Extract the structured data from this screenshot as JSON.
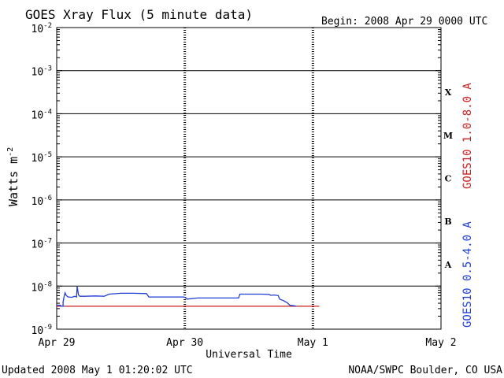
{
  "chart_data": {
    "type": "line",
    "title": "GOES Xray Flux (5 minute data)",
    "begin_label": "Begin:  2008 Apr 29 0000 UTC",
    "xlabel": "Universal Time",
    "ylabel": "Watts m",
    "ylabel_sup": "-2",
    "footer_left": "Updated 2008 May  1 01:20:02 UTC",
    "footer_right": "NOAA/SWPC Boulder, CO USA",
    "x_unit": "days since 2008 Apr 29 00:00 UTC",
    "x_range": [
      0,
      3
    ],
    "x_ticks": [
      {
        "x": 0,
        "label": "Apr 29"
      },
      {
        "x": 1,
        "label": "Apr 30"
      },
      {
        "x": 2,
        "label": "May 1"
      },
      {
        "x": 3,
        "label": "May 2"
      }
    ],
    "y_scale": "log",
    "y_range": [
      1e-09,
      0.01
    ],
    "y_ticks": [
      {
        "exp": -2,
        "base": "10",
        "sup": "-2"
      },
      {
        "exp": -3,
        "base": "10",
        "sup": "-3"
      },
      {
        "exp": -4,
        "base": "10",
        "sup": "-4"
      },
      {
        "exp": -5,
        "base": "10",
        "sup": "-5"
      },
      {
        "exp": -6,
        "base": "10",
        "sup": "-6"
      },
      {
        "exp": -7,
        "base": "10",
        "sup": "-7"
      },
      {
        "exp": -8,
        "base": "10",
        "sup": "-8"
      },
      {
        "exp": -9,
        "base": "10",
        "sup": "-9"
      }
    ],
    "flare_classes": [
      {
        "label": "X",
        "exp": -3.5
      },
      {
        "label": "M",
        "exp": -4.5
      },
      {
        "label": "C",
        "exp": -5.5
      },
      {
        "label": "B",
        "exp": -6.5
      },
      {
        "label": "A",
        "exp": -7.5
      }
    ],
    "grid": true,
    "series": [
      {
        "name": "GOES10 1.0-8.0 A",
        "color": "#cc2222",
        "points": [
          [
            0.0,
            3.4e-09
          ],
          [
            2.05,
            3.4e-09
          ]
        ]
      },
      {
        "name": "GOES10 0.5-4.0 A",
        "color": "#1f3fd6",
        "points": [
          [
            0.0,
            3.6e-09
          ],
          [
            0.03,
            3.6e-09
          ],
          [
            0.03,
            3.4e-09
          ],
          [
            0.05,
            3.4e-09
          ],
          [
            0.05,
            4.3e-09
          ],
          [
            0.06,
            6.2e-09
          ],
          [
            0.065,
            7e-09
          ],
          [
            0.075,
            6e-09
          ],
          [
            0.09,
            5.6e-09
          ],
          [
            0.12,
            5.5e-09
          ],
          [
            0.14,
            5.8e-09
          ],
          [
            0.155,
            5.6e-09
          ],
          [
            0.16,
            9.8e-09
          ],
          [
            0.17,
            6.2e-09
          ],
          [
            0.18,
            5.8e-09
          ],
          [
            0.22,
            5.8e-09
          ],
          [
            0.3,
            5.9e-09
          ],
          [
            0.37,
            5.8e-09
          ],
          [
            0.41,
            6.5e-09
          ],
          [
            0.5,
            6.8e-09
          ],
          [
            0.6,
            6.8e-09
          ],
          [
            0.7,
            6.7e-09
          ],
          [
            0.72,
            5.6e-09
          ],
          [
            0.85,
            5.6e-09
          ],
          [
            0.99,
            5.6e-09
          ],
          [
            1.0,
            5.5e-09
          ],
          [
            1.02,
            5e-09
          ],
          [
            1.1,
            5.3e-09
          ],
          [
            1.3,
            5.3e-09
          ],
          [
            1.42,
            5.3e-09
          ],
          [
            1.43,
            6.5e-09
          ],
          [
            1.6,
            6.5e-09
          ],
          [
            1.66,
            6.4e-09
          ],
          [
            1.67,
            6.1e-09
          ],
          [
            1.7,
            6.2e-09
          ],
          [
            1.73,
            6e-09
          ],
          [
            1.74,
            5e-09
          ],
          [
            1.77,
            4.6e-09
          ],
          [
            1.8,
            4.1e-09
          ],
          [
            1.82,
            3.6e-09
          ],
          [
            1.85,
            3.5e-09
          ],
          [
            1.87,
            3.4e-09
          ]
        ]
      }
    ]
  }
}
